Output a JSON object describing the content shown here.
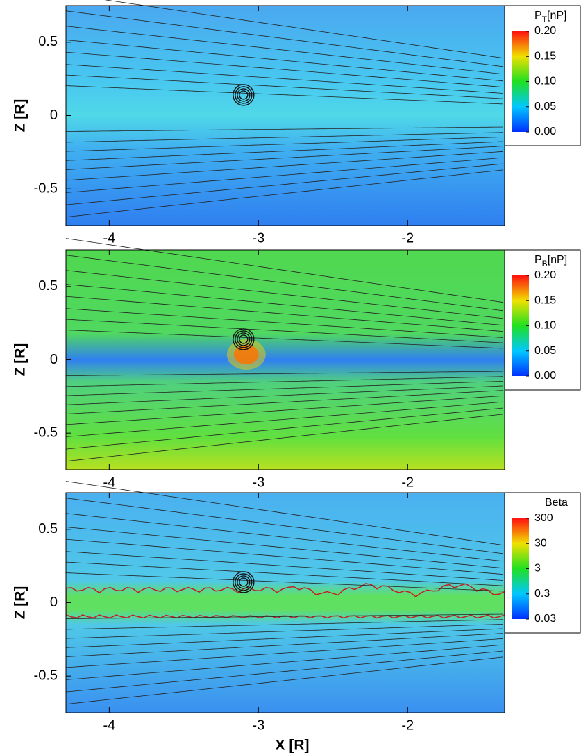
{
  "chart_data": [
    {
      "type": "heatmap",
      "ylabel": "Z [R]",
      "xlim": [
        -4.29,
        -1.35
      ],
      "xticks": [
        -4,
        -3,
        -2
      ],
      "ylim": [
        -0.75,
        0.75
      ],
      "yticks": [
        -0.5,
        0,
        0.5
      ],
      "colorbar": {
        "label": {
          "text": "P",
          "sub": "T",
          "rest": "[nP]"
        },
        "lim": [
          0,
          0.2
        ],
        "log": false,
        "ticks": [
          {
            "value": 0,
            "label": "0.00"
          },
          {
            "value": 0.05,
            "label": "0.05"
          },
          {
            "value": 0.1,
            "label": "0.10"
          },
          {
            "value": 0.15,
            "label": "0.15"
          },
          {
            "value": 0.2,
            "label": "0.20"
          }
        ]
      }
    },
    {
      "type": "heatmap",
      "ylabel": "Z [R]",
      "xlim": [
        -4.29,
        -1.35
      ],
      "xticks": [
        -4,
        -3,
        -2
      ],
      "ylim": [
        -0.75,
        0.75
      ],
      "yticks": [
        -0.5,
        0,
        0.5
      ],
      "colorbar": {
        "label": {
          "text": "P",
          "sub": "B",
          "rest": "[nP]"
        },
        "lim": [
          0,
          0.2
        ],
        "log": false,
        "ticks": [
          {
            "value": 0,
            "label": "0.00"
          },
          {
            "value": 0.05,
            "label": "0.05"
          },
          {
            "value": 0.1,
            "label": "0.10"
          },
          {
            "value": 0.15,
            "label": "0.15"
          },
          {
            "value": 0.2,
            "label": "0.20"
          }
        ]
      }
    },
    {
      "type": "heatmap",
      "ylabel": "Z [R]",
      "xlabel": "X [R]",
      "xlim": [
        -4.29,
        -1.35
      ],
      "xticks": [
        -4,
        -3,
        -2
      ],
      "ylim": [
        -0.75,
        0.75
      ],
      "yticks": [
        -0.5,
        0,
        0.5
      ],
      "colorbar": {
        "label": {
          "text": "Beta"
        },
        "lim": [
          0.03,
          300
        ],
        "log": true,
        "ticks": [
          0.03,
          0.3,
          3,
          30,
          300
        ]
      }
    }
  ]
}
